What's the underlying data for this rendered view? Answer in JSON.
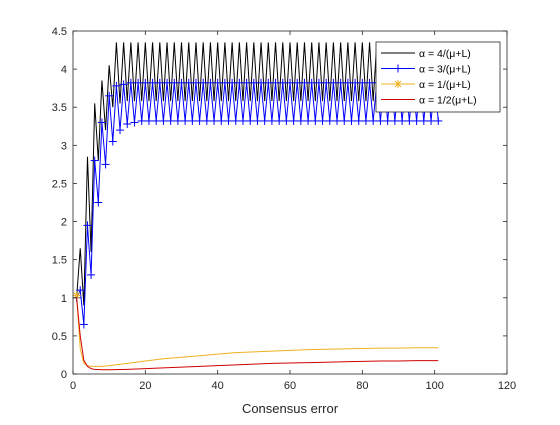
{
  "chart_data": {
    "type": "line",
    "title": "",
    "xlabel": "Consensus error",
    "ylabel": "",
    "xlim": [
      0,
      120
    ],
    "ylim": [
      0,
      4.5
    ],
    "xticks": [
      0,
      20,
      40,
      60,
      80,
      100,
      120
    ],
    "yticks": [
      0,
      0.5,
      1,
      1.5,
      2,
      2.5,
      3,
      3.5,
      4,
      4.5
    ],
    "xtick_labels": [
      "0",
      "20",
      "40",
      "60",
      "80",
      "100",
      "120"
    ],
    "ytick_labels": [
      "0",
      "0.5",
      "1",
      "1.5",
      "2",
      "2.5",
      "3",
      "3.5",
      "4",
      "4.5"
    ],
    "grid": false,
    "legend_position": "top-right",
    "series": [
      {
        "name": "α = 4/(μ+L)",
        "color": "#000000",
        "marker": "none",
        "points": [
          [
            1,
            1
          ],
          [
            2,
            1.65
          ],
          [
            3,
            0.9
          ],
          [
            4,
            2.85
          ],
          [
            5,
            1.6
          ],
          [
            6,
            3.55
          ],
          [
            7,
            2.8
          ],
          [
            8,
            3.85
          ],
          [
            9,
            3.2
          ],
          [
            10,
            4.05
          ],
          [
            11,
            3.5
          ],
          [
            12,
            4.35
          ],
          [
            13,
            3.55
          ],
          [
            14,
            4.35
          ],
          [
            15,
            3.58
          ],
          [
            16,
            4.35
          ],
          [
            17,
            3.58
          ],
          [
            18,
            4.35
          ],
          [
            19,
            3.58
          ],
          [
            20,
            4.35
          ],
          [
            21,
            3.58
          ],
          [
            22,
            4.35
          ],
          [
            23,
            3.58
          ],
          [
            24,
            4.35
          ],
          [
            25,
            3.58
          ],
          [
            26,
            4.35
          ],
          [
            27,
            3.58
          ],
          [
            28,
            4.35
          ],
          [
            29,
            3.58
          ],
          [
            30,
            4.35
          ],
          [
            31,
            3.58
          ],
          [
            32,
            4.35
          ],
          [
            33,
            3.58
          ],
          [
            34,
            4.35
          ],
          [
            35,
            3.58
          ],
          [
            36,
            4.35
          ],
          [
            37,
            3.58
          ],
          [
            38,
            4.35
          ],
          [
            39,
            3.58
          ],
          [
            40,
            4.35
          ],
          [
            41,
            3.58
          ],
          [
            42,
            4.35
          ],
          [
            43,
            3.58
          ],
          [
            44,
            4.35
          ],
          [
            45,
            3.58
          ],
          [
            46,
            4.35
          ],
          [
            47,
            3.58
          ],
          [
            48,
            4.35
          ],
          [
            49,
            3.58
          ],
          [
            50,
            4.35
          ],
          [
            51,
            3.58
          ],
          [
            52,
            4.35
          ],
          [
            53,
            3.58
          ],
          [
            54,
            4.35
          ],
          [
            55,
            3.58
          ],
          [
            56,
            4.35
          ],
          [
            57,
            3.58
          ],
          [
            58,
            4.35
          ],
          [
            59,
            3.58
          ],
          [
            60,
            4.35
          ],
          [
            61,
            3.58
          ],
          [
            62,
            4.35
          ],
          [
            63,
            3.58
          ],
          [
            64,
            4.35
          ],
          [
            65,
            3.58
          ],
          [
            66,
            4.35
          ],
          [
            67,
            3.58
          ],
          [
            68,
            4.35
          ],
          [
            69,
            3.58
          ],
          [
            70,
            4.35
          ],
          [
            71,
            3.58
          ],
          [
            72,
            4.35
          ],
          [
            73,
            3.58
          ],
          [
            74,
            4.35
          ],
          [
            75,
            3.58
          ],
          [
            76,
            4.35
          ],
          [
            77,
            3.58
          ],
          [
            78,
            4.35
          ],
          [
            79,
            3.58
          ],
          [
            80,
            4.35
          ],
          [
            81,
            3.58
          ],
          [
            82,
            4.35
          ],
          [
            83,
            3.58
          ],
          [
            84,
            4.35
          ],
          [
            85,
            3.58
          ],
          [
            86,
            4.35
          ],
          [
            87,
            3.58
          ],
          [
            88,
            4.35
          ],
          [
            89,
            3.58
          ],
          [
            90,
            4.35
          ],
          [
            91,
            3.58
          ],
          [
            92,
            4.35
          ],
          [
            93,
            3.58
          ],
          [
            94,
            4.35
          ],
          [
            95,
            3.58
          ],
          [
            96,
            4.35
          ],
          [
            97,
            3.58
          ],
          [
            98,
            4.35
          ],
          [
            99,
            3.58
          ],
          [
            100,
            4.35
          ],
          [
            101,
            3.6
          ]
        ]
      },
      {
        "name": "α = 3/(μ+L)",
        "color": "#0000ff",
        "marker": "+",
        "points": [
          [
            1,
            1
          ],
          [
            2,
            1.1
          ],
          [
            3,
            0.65
          ],
          [
            4,
            1.95
          ],
          [
            5,
            1.3
          ],
          [
            6,
            2.8
          ],
          [
            7,
            2.25
          ],
          [
            8,
            3.3
          ],
          [
            9,
            2.75
          ],
          [
            10,
            3.65
          ],
          [
            11,
            3.05
          ],
          [
            12,
            3.78
          ],
          [
            13,
            3.2
          ],
          [
            14,
            3.8
          ],
          [
            15,
            3.28
          ],
          [
            16,
            3.82
          ],
          [
            17,
            3.3
          ],
          [
            18,
            3.82
          ],
          [
            19,
            3.32
          ],
          [
            20,
            3.82
          ],
          [
            21,
            3.32
          ],
          [
            22,
            3.82
          ],
          [
            23,
            3.32
          ],
          [
            24,
            3.82
          ],
          [
            25,
            3.32
          ],
          [
            26,
            3.82
          ],
          [
            27,
            3.32
          ],
          [
            28,
            3.82
          ],
          [
            29,
            3.32
          ],
          [
            30,
            3.82
          ],
          [
            31,
            3.32
          ],
          [
            32,
            3.82
          ],
          [
            33,
            3.32
          ],
          [
            34,
            3.82
          ],
          [
            35,
            3.32
          ],
          [
            36,
            3.82
          ],
          [
            37,
            3.32
          ],
          [
            38,
            3.82
          ],
          [
            39,
            3.32
          ],
          [
            40,
            3.82
          ],
          [
            41,
            3.32
          ],
          [
            42,
            3.82
          ],
          [
            43,
            3.32
          ],
          [
            44,
            3.82
          ],
          [
            45,
            3.32
          ],
          [
            46,
            3.82
          ],
          [
            47,
            3.32
          ],
          [
            48,
            3.82
          ],
          [
            49,
            3.32
          ],
          [
            50,
            3.82
          ],
          [
            51,
            3.32
          ],
          [
            52,
            3.82
          ],
          [
            53,
            3.32
          ],
          [
            54,
            3.82
          ],
          [
            55,
            3.32
          ],
          [
            56,
            3.82
          ],
          [
            57,
            3.32
          ],
          [
            58,
            3.82
          ],
          [
            59,
            3.32
          ],
          [
            60,
            3.82
          ],
          [
            61,
            3.32
          ],
          [
            62,
            3.82
          ],
          [
            63,
            3.32
          ],
          [
            64,
            3.82
          ],
          [
            65,
            3.32
          ],
          [
            66,
            3.82
          ],
          [
            67,
            3.32
          ],
          [
            68,
            3.82
          ],
          [
            69,
            3.32
          ],
          [
            70,
            3.82
          ],
          [
            71,
            3.32
          ],
          [
            72,
            3.82
          ],
          [
            73,
            3.32
          ],
          [
            74,
            3.82
          ],
          [
            75,
            3.32
          ],
          [
            76,
            3.82
          ],
          [
            77,
            3.32
          ],
          [
            78,
            3.82
          ],
          [
            79,
            3.32
          ],
          [
            80,
            3.82
          ],
          [
            81,
            3.32
          ],
          [
            82,
            3.82
          ],
          [
            83,
            3.32
          ],
          [
            84,
            3.82
          ],
          [
            85,
            3.32
          ],
          [
            86,
            3.82
          ],
          [
            87,
            3.32
          ],
          [
            88,
            3.82
          ],
          [
            89,
            3.32
          ],
          [
            90,
            3.82
          ],
          [
            91,
            3.32
          ],
          [
            92,
            3.82
          ],
          [
            93,
            3.32
          ],
          [
            94,
            3.82
          ],
          [
            95,
            3.32
          ],
          [
            96,
            3.82
          ],
          [
            97,
            3.32
          ],
          [
            98,
            3.82
          ],
          [
            99,
            3.32
          ],
          [
            100,
            3.82
          ],
          [
            101,
            3.32
          ]
        ]
      },
      {
        "name": "α = 1/(μ+L)",
        "color": "#edb120",
        "marker": "*",
        "points": [
          [
            1,
            1.03
          ],
          [
            2,
            0.33
          ],
          [
            3,
            0.14
          ],
          [
            4,
            0.11
          ],
          [
            5,
            0.1
          ],
          [
            6,
            0.1
          ],
          [
            8,
            0.1
          ],
          [
            10,
            0.11
          ],
          [
            15,
            0.14
          ],
          [
            20,
            0.17
          ],
          [
            25,
            0.2
          ],
          [
            30,
            0.22
          ],
          [
            35,
            0.24
          ],
          [
            40,
            0.26
          ],
          [
            45,
            0.28
          ],
          [
            50,
            0.29
          ],
          [
            55,
            0.3
          ],
          [
            60,
            0.31
          ],
          [
            65,
            0.32
          ],
          [
            70,
            0.325
          ],
          [
            75,
            0.33
          ],
          [
            80,
            0.335
          ],
          [
            85,
            0.34
          ],
          [
            90,
            0.34
          ],
          [
            95,
            0.345
          ],
          [
            101,
            0.345
          ]
        ]
      },
      {
        "name": "α = 1/2(μ+L)",
        "color": "#d00000",
        "marker": "none",
        "points": [
          [
            1,
            1
          ],
          [
            2,
            0.5
          ],
          [
            3,
            0.18
          ],
          [
            4,
            0.1
          ],
          [
            5,
            0.07
          ],
          [
            6,
            0.06
          ],
          [
            8,
            0.055
          ],
          [
            10,
            0.055
          ],
          [
            15,
            0.06
          ],
          [
            20,
            0.07
          ],
          [
            25,
            0.08
          ],
          [
            30,
            0.09
          ],
          [
            35,
            0.1
          ],
          [
            40,
            0.11
          ],
          [
            45,
            0.12
          ],
          [
            50,
            0.13
          ],
          [
            55,
            0.14
          ],
          [
            60,
            0.145
          ],
          [
            65,
            0.15
          ],
          [
            70,
            0.155
          ],
          [
            75,
            0.16
          ],
          [
            80,
            0.165
          ],
          [
            85,
            0.17
          ],
          [
            90,
            0.17
          ],
          [
            95,
            0.175
          ],
          [
            101,
            0.175
          ]
        ]
      }
    ]
  }
}
